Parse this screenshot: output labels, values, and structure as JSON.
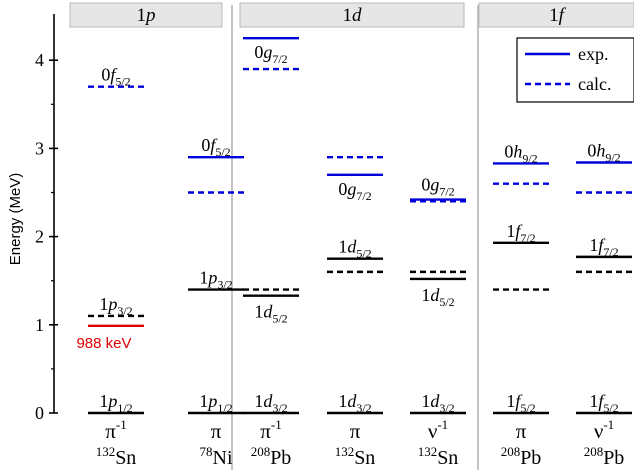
{
  "chart_data": {
    "type": "level-scheme",
    "ylabel": "Energy (MeV)",
    "ylim": [
      0,
      4.5
    ],
    "yticks": [
      0,
      1,
      2,
      3,
      4
    ],
    "grid": false,
    "legend_placement": "top-right",
    "legend": {
      "exp": {
        "label": "exp.",
        "color": "#0000dd",
        "style": "solid"
      },
      "calc": {
        "label": "calc.",
        "color": "#0000dd",
        "style": "dashed"
      }
    },
    "groups": [
      {
        "label_main": "1",
        "label_sub": "p",
        "columns": [
          0,
          1
        ]
      },
      {
        "label_main": "1",
        "label_sub": "d",
        "columns": [
          2,
          3,
          4
        ]
      },
      {
        "label_main": "1",
        "label_sub": "f",
        "columns": [
          5,
          6
        ]
      }
    ],
    "columns": [
      {
        "particle": "π",
        "particle_sup": "-1",
        "nucleus_mass": "132",
        "nucleus": "Sn",
        "levels": [
          {
            "e": 0,
            "kind": "exp",
            "color": "#000000",
            "orb": "1",
            "l": "p",
            "j": "1/2"
          },
          {
            "e": 1.1,
            "kind": "calc",
            "color": "#000000",
            "orb": "1",
            "l": "p",
            "j": "3/2"
          },
          {
            "e": 0.988,
            "kind": "exp",
            "color": "#dd0000"
          },
          {
            "e": 3.7,
            "kind": "calc",
            "color": "#0000dd",
            "orb": "0",
            "l": "f",
            "j": "5/2"
          }
        ],
        "annotation": {
          "text": "988 keV",
          "color": "#dd0000"
        }
      },
      {
        "particle": "π",
        "particle_sup": "",
        "nucleus_mass": "78",
        "nucleus": "Ni",
        "levels": [
          {
            "e": 0,
            "kind": "exp",
            "color": "#000000",
            "orb": "1",
            "l": "p",
            "j": "1/2"
          },
          {
            "e": 1.4,
            "kind": "exp",
            "color": "#000000",
            "orb": "1",
            "l": "p",
            "j": "3/2"
          },
          {
            "e": 2.9,
            "kind": "exp",
            "color": "#0000dd",
            "orb": "0",
            "l": "f",
            "j": "5/2"
          },
          {
            "e": 2.5,
            "kind": "calc",
            "color": "#0000dd"
          }
        ]
      },
      {
        "particle": "π",
        "particle_sup": "-1",
        "nucleus_mass": "208",
        "nucleus": "Pb",
        "levels": [
          {
            "e": 0,
            "kind": "exp",
            "color": "#000000",
            "orb": "1",
            "l": "d",
            "j": "3/2"
          },
          {
            "e": 1.33,
            "kind": "exp",
            "color": "#000000",
            "orb": "1",
            "l": "d",
            "j": "5/2"
          },
          {
            "e": 1.4,
            "kind": "calc",
            "color": "#000000"
          },
          {
            "e": 4.25,
            "kind": "exp",
            "color": "#0000dd",
            "orb": "0",
            "l": "g",
            "j": "7/2"
          },
          {
            "e": 3.9,
            "kind": "calc",
            "color": "#0000dd"
          }
        ]
      },
      {
        "particle": "π",
        "particle_sup": "",
        "nucleus_mass": "132",
        "nucleus": "Sn",
        "levels": [
          {
            "e": 0,
            "kind": "exp",
            "color": "#000000",
            "orb": "1",
            "l": "d",
            "j": "3/2"
          },
          {
            "e": 1.75,
            "kind": "exp",
            "color": "#000000",
            "orb": "1",
            "l": "d",
            "j": "5/2"
          },
          {
            "e": 1.6,
            "kind": "calc",
            "color": "#000000"
          },
          {
            "e": 2.7,
            "kind": "exp",
            "color": "#0000dd",
            "orb": "0",
            "l": "g",
            "j": "7/2"
          },
          {
            "e": 2.9,
            "kind": "calc",
            "color": "#0000dd"
          }
        ]
      },
      {
        "particle": "ν",
        "particle_sup": "-1",
        "nucleus_mass": "132",
        "nucleus": "Sn",
        "levels": [
          {
            "e": 0,
            "kind": "exp",
            "color": "#000000",
            "orb": "1",
            "l": "d",
            "j": "3/2"
          },
          {
            "e": 1.52,
            "kind": "exp",
            "color": "#000000",
            "orb": "1",
            "l": "d",
            "j": "5/2"
          },
          {
            "e": 1.6,
            "kind": "calc",
            "color": "#000000"
          },
          {
            "e": 2.42,
            "kind": "exp",
            "color": "#0000dd",
            "orb": "0",
            "l": "g",
            "j": "7/2"
          },
          {
            "e": 2.4,
            "kind": "calc",
            "color": "#0000dd"
          }
        ]
      },
      {
        "particle": "π",
        "particle_sup": "",
        "nucleus_mass": "208",
        "nucleus": "Pb",
        "levels": [
          {
            "e": 0,
            "kind": "exp",
            "color": "#000000",
            "orb": "1",
            "l": "f",
            "j": "5/2"
          },
          {
            "e": 1.93,
            "kind": "exp",
            "color": "#000000",
            "orb": "1",
            "l": "f",
            "j": "7/2"
          },
          {
            "e": 1.4,
            "kind": "calc",
            "color": "#000000"
          },
          {
            "e": 2.83,
            "kind": "exp",
            "color": "#0000dd",
            "orb": "0",
            "l": "h",
            "j": "9/2"
          },
          {
            "e": 2.6,
            "kind": "calc",
            "color": "#0000dd"
          }
        ]
      },
      {
        "particle": "ν",
        "particle_sup": "-1",
        "nucleus_mass": "208",
        "nucleus": "Pb",
        "levels": [
          {
            "e": 0,
            "kind": "exp",
            "color": "#000000",
            "orb": "1",
            "l": "f",
            "j": "5/2"
          },
          {
            "e": 1.77,
            "kind": "exp",
            "color": "#000000",
            "orb": "1",
            "l": "f",
            "j": "7/2"
          },
          {
            "e": 1.6,
            "kind": "calc",
            "color": "#000000"
          },
          {
            "e": 2.84,
            "kind": "exp",
            "color": "#0000dd",
            "orb": "0",
            "l": "h",
            "j": "9/2"
          },
          {
            "e": 2.5,
            "kind": "calc",
            "color": "#0000dd"
          }
        ]
      }
    ]
  }
}
